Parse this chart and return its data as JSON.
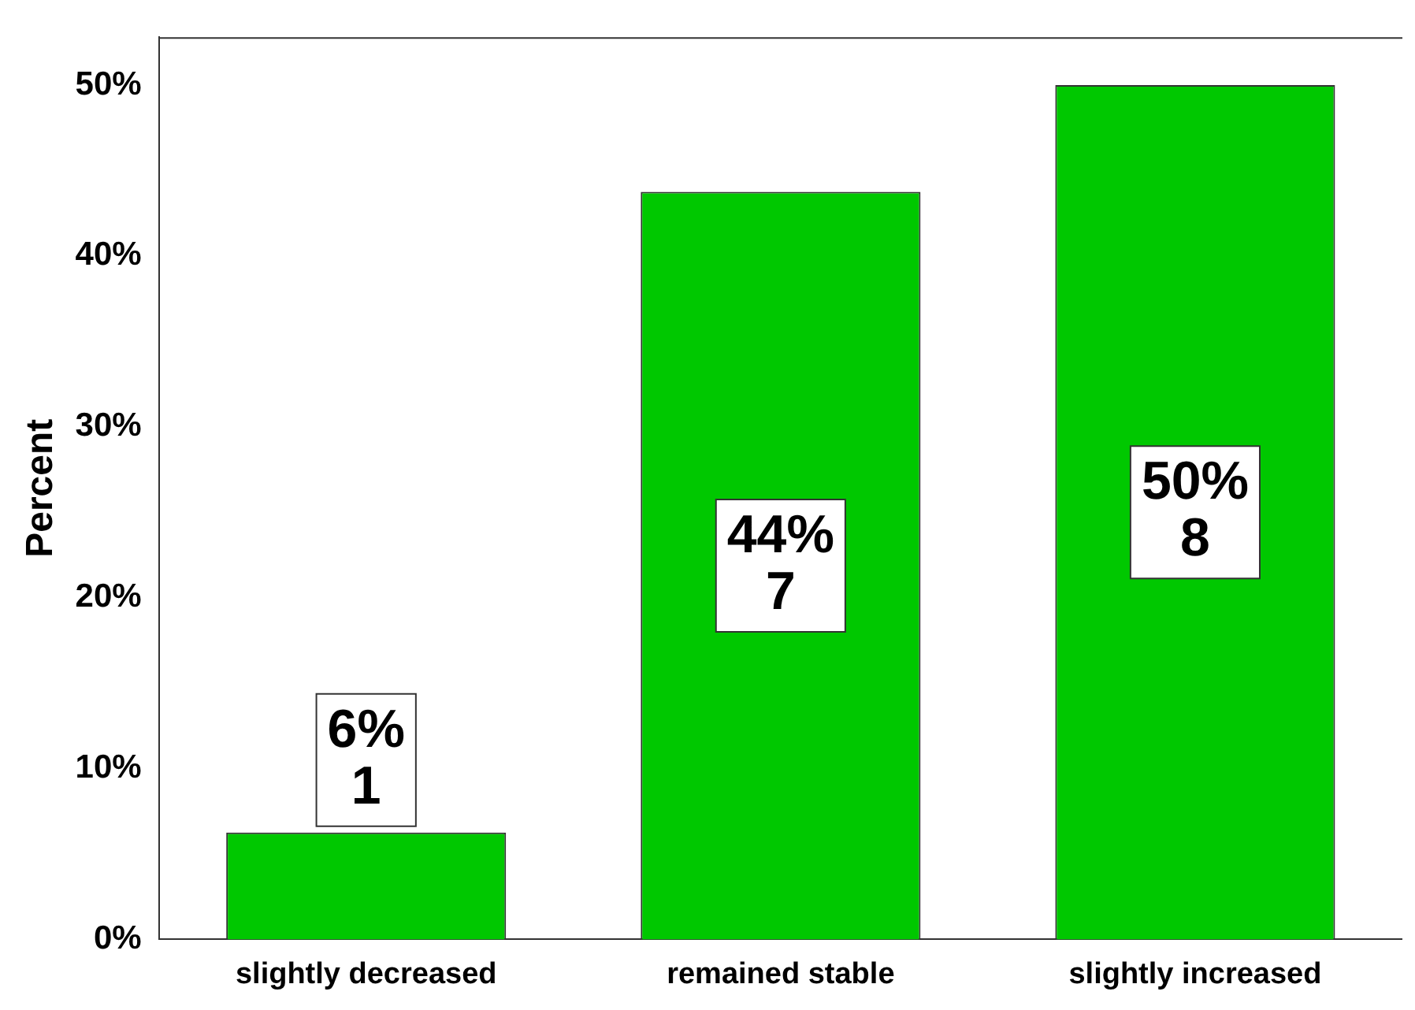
{
  "chart_data": {
    "type": "bar",
    "ylabel": "Percent",
    "categories": [
      "slightly decreased",
      "remained stable",
      "slightly increased"
    ],
    "values": [
      6.25,
      43.75,
      50
    ],
    "color": "#00c800",
    "value_labels": [
      "6%\n1",
      "44%\n7",
      "50%\n8"
    ],
    "ylim": [
      0,
      52.8
    ],
    "yticks": [
      {
        "value": 0,
        "label": "0%"
      },
      {
        "value": 10,
        "label": "10%"
      },
      {
        "value": 20,
        "label": "20%"
      },
      {
        "value": 30,
        "label": "30%"
      },
      {
        "value": 40,
        "label": "40%"
      },
      {
        "value": 50,
        "label": "50%"
      }
    ],
    "grid": false,
    "legend": false
  }
}
